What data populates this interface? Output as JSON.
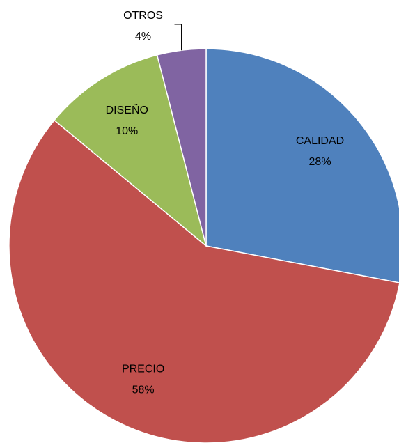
{
  "chart_data": {
    "type": "pie",
    "categories": [
      "CALIDAD",
      "PRECIO",
      "DISEÑO",
      "OTROS"
    ],
    "values": [
      28,
      58,
      10,
      4
    ],
    "value_labels": [
      "28%",
      "58%",
      "10%",
      "4%"
    ],
    "colors": [
      "#4f81bd",
      "#c0504d",
      "#9bbb59",
      "#8064a2"
    ]
  }
}
